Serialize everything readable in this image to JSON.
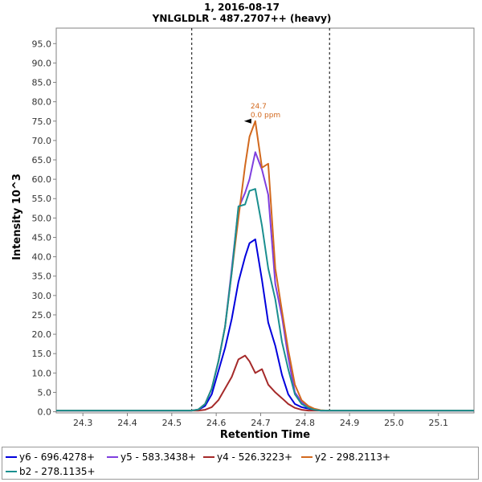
{
  "chart_data": {
    "type": "line",
    "title": "1, 2016-08-17",
    "subtitle": "YNLGLDLR - 487.2707++ (heavy)",
    "xlabel": "Retention Time",
    "ylabel": "Intensity 10^3",
    "xlim": [
      24.24,
      25.18
    ],
    "ylim": [
      -0.3,
      99
    ],
    "x_ticks": [
      24.3,
      24.4,
      24.5,
      24.6,
      24.7,
      24.8,
      24.9,
      25.0,
      25.1
    ],
    "x_tick_labels": [
      "24.3",
      "24.4",
      "24.5",
      "24.6",
      "24.7",
      "24.8",
      "24.9",
      "25.0",
      "25.1"
    ],
    "y_ticks": [
      0,
      5,
      10,
      15,
      20,
      25,
      30,
      35,
      40,
      45,
      50,
      55,
      60,
      65,
      70,
      75,
      80,
      85,
      90,
      95
    ],
    "y_tick_labels": [
      "0.0",
      "5.0",
      "10.0",
      "15.0",
      "20.0",
      "25.0",
      "30.0",
      "35.0",
      "40.0",
      "45.0",
      "50.0",
      "55.0",
      "60.0",
      "65.0",
      "70.0",
      "75.0",
      "80.0",
      "85.0",
      "90.0",
      "95.0"
    ],
    "integration_bounds": [
      24.545,
      24.855
    ],
    "annotation": {
      "x": 24.688,
      "y": 75,
      "line1": "24.7",
      "line2": "0.0 ppm"
    },
    "x": [
      24.24,
      24.3,
      24.35,
      24.4,
      24.45,
      24.5,
      24.52,
      24.545,
      24.56,
      24.575,
      24.59,
      24.605,
      24.62,
      24.635,
      24.65,
      24.665,
      24.675,
      24.688,
      24.703,
      24.717,
      24.733,
      24.748,
      24.762,
      24.777,
      24.792,
      24.807,
      24.82,
      24.835,
      24.85,
      24.87,
      24.9,
      24.95,
      25.0,
      25.05,
      25.1,
      25.18
    ],
    "series": [
      {
        "name": "y6 - 696.4278+",
        "color": "#0000dd",
        "values": [
          0.3,
          0.3,
          0.3,
          0.3,
          0.3,
          0.3,
          0.3,
          0.3,
          0.5,
          1.5,
          4.5,
          10.5,
          16.5,
          24,
          33.5,
          40,
          43.5,
          44.5,
          34,
          23,
          17,
          9.5,
          4.5,
          2,
          1.2,
          0.8,
          0.5,
          0.3,
          0.3,
          0.3,
          0.3,
          0.3,
          0.3,
          0.3,
          0.3,
          0.3
        ]
      },
      {
        "name": "y5 - 583.3438+",
        "color": "#7f3fdf",
        "values": [
          0.3,
          0.3,
          0.3,
          0.3,
          0.3,
          0.3,
          0.3,
          0.3,
          0.6,
          2,
          6,
          13,
          22,
          37,
          52.5,
          56.5,
          60,
          67,
          62.5,
          56,
          33,
          24.5,
          14,
          5,
          2.5,
          1.2,
          0.6,
          0.3,
          0.3,
          0.3,
          0.3,
          0.3,
          0.3,
          0.3,
          0.3,
          0.3
        ]
      },
      {
        "name": "y4 - 526.3223+",
        "color": "#a52a2a",
        "values": [
          0.3,
          0.3,
          0.3,
          0.3,
          0.3,
          0.3,
          0.3,
          0.3,
          0.3,
          0.5,
          1.2,
          3,
          6,
          9,
          13.5,
          14.5,
          13,
          10,
          11,
          7,
          5,
          3.5,
          2,
          1,
          0.5,
          0.3,
          0.3,
          0.3,
          0.3,
          0.3,
          0.3,
          0.3,
          0.3,
          0.3,
          0.3,
          0.3
        ]
      },
      {
        "name": "y2 - 298.2113+",
        "color": "#d2691e",
        "values": [
          0.3,
          0.3,
          0.3,
          0.3,
          0.3,
          0.3,
          0.3,
          0.3,
          0.6,
          2,
          6,
          13,
          22,
          36,
          50,
          63.5,
          71,
          75,
          63,
          64,
          37,
          26,
          16,
          7,
          3,
          1.5,
          0.8,
          0.4,
          0.3,
          0.3,
          0.3,
          0.3,
          0.3,
          0.3,
          0.3,
          0.3
        ]
      },
      {
        "name": "b2 - 278.1135+",
        "color": "#1a8f8f",
        "values": [
          0.3,
          0.3,
          0.3,
          0.3,
          0.3,
          0.3,
          0.3,
          0.3,
          0.6,
          2,
          6,
          13,
          22,
          36,
          53,
          53.5,
          57,
          57.5,
          48,
          37,
          29,
          18,
          11,
          4.5,
          2,
          1,
          0.5,
          0.3,
          0.3,
          0.3,
          0.3,
          0.3,
          0.3,
          0.3,
          0.3,
          0.3
        ]
      }
    ]
  }
}
